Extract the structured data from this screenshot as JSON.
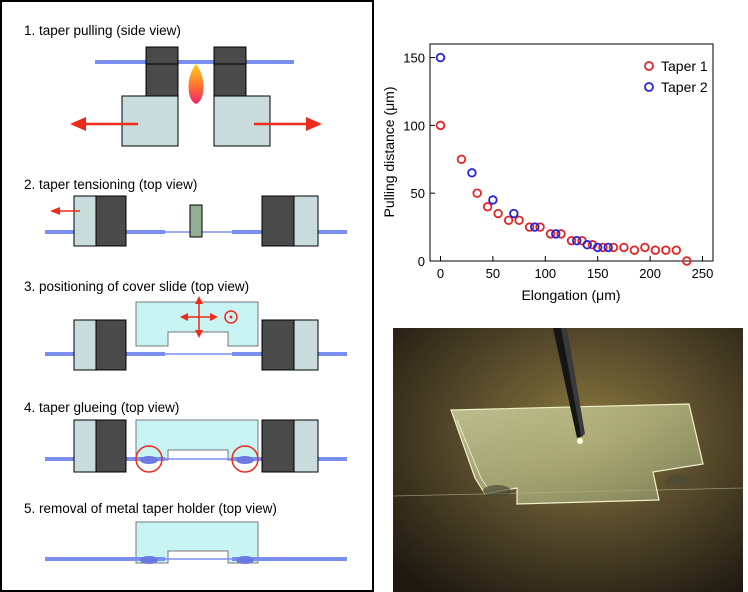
{
  "steps": [
    {
      "label": "1. taper pulling (side view)"
    },
    {
      "label": "2. taper tensioning (top view)"
    },
    {
      "label": "3. positioning of cover slide (top view)"
    },
    {
      "label": "4. taper glueing (top view)"
    },
    {
      "label": "5. removal of metal taper holder (top view)"
    }
  ],
  "colors": {
    "fiber": "#7a8ef0",
    "holder_dark": "#4a4a4a",
    "holder_light": "#c9dcdc",
    "arrow": "#ee2a1a",
    "slide": "#c8f4f4",
    "taper1": "#e52424",
    "taper2": "#2424d8"
  },
  "chart_data": {
    "type": "scatter",
    "xlabel": "Elongation (μm)",
    "ylabel": "Pulling distance (μm)",
    "xlim": [
      -10,
      260
    ],
    "ylim": [
      0,
      160
    ],
    "xticks": [
      0,
      50,
      100,
      150,
      200,
      250
    ],
    "yticks": [
      0,
      50,
      100,
      150
    ],
    "legend": "top-right",
    "series": [
      {
        "name": "Taper 1",
        "color": "#e52424",
        "x": [
          0,
          20,
          35,
          45,
          55,
          65,
          75,
          85,
          95,
          105,
          115,
          125,
          135,
          145,
          155,
          165,
          175,
          185,
          195,
          205,
          215,
          225,
          235
        ],
        "y": [
          100,
          75,
          50,
          40,
          35,
          30,
          30,
          25,
          25,
          20,
          20,
          15,
          15,
          12,
          10,
          10,
          10,
          8,
          10,
          8,
          8,
          8,
          0
        ]
      },
      {
        "name": "Taper 2",
        "color": "#2424d8",
        "x": [
          0,
          30,
          50,
          70,
          90,
          110,
          130,
          140,
          150,
          160
        ],
        "y": [
          150,
          65,
          45,
          35,
          25,
          20,
          15,
          12,
          10,
          10
        ]
      }
    ]
  }
}
